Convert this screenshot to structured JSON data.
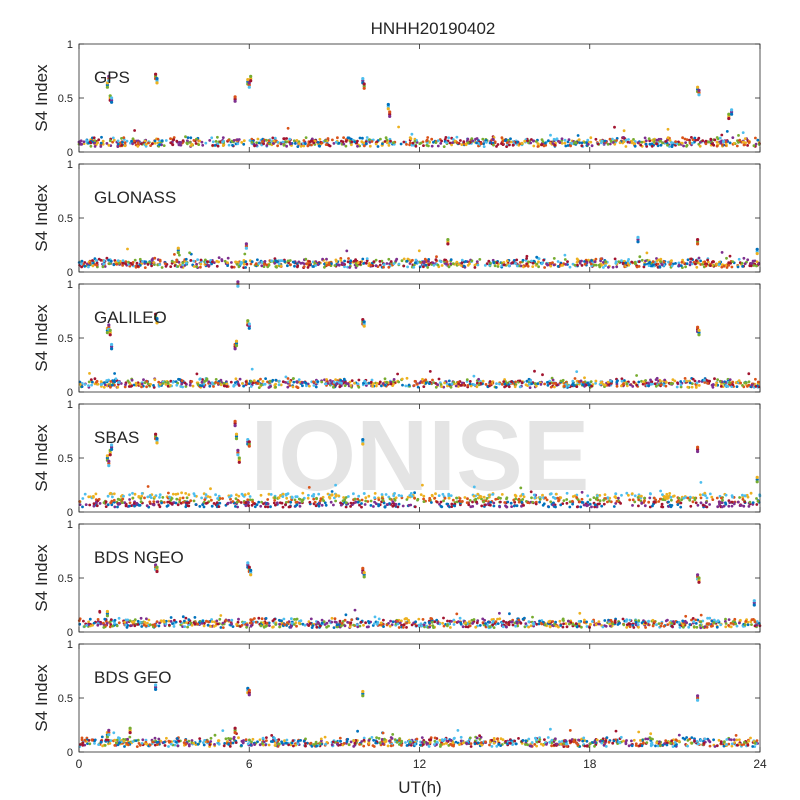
{
  "chart_data": {
    "type": "scatter",
    "title": "HNHH20190402",
    "xlabel": "UT(h)",
    "ylabel": "S4 Index",
    "xlim": [
      0,
      24
    ],
    "ylim": [
      0,
      1
    ],
    "x_ticks": [
      0,
      6,
      12,
      18,
      24
    ],
    "y_ticks": [
      0,
      0.5,
      1
    ],
    "y_tick_labels": [
      "0",
      "0.5",
      "1"
    ],
    "watermark": "IONISE",
    "series_colors": [
      "#0072BD",
      "#D95319",
      "#EDB120",
      "#7E2F8E",
      "#77AC30",
      "#4DBEEE",
      "#A2142F"
    ],
    "panels": [
      {
        "label": "GPS",
        "baseline": 0.08,
        "spikes": [
          [
            1.0,
            0.62
          ],
          [
            1.05,
            0.68
          ],
          [
            1.1,
            0.5
          ],
          [
            1.15,
            0.48
          ],
          [
            2.7,
            0.7
          ],
          [
            2.75,
            0.66
          ],
          [
            5.5,
            0.49
          ],
          [
            5.95,
            0.65
          ],
          [
            6.0,
            0.62
          ],
          [
            6.05,
            0.68
          ],
          [
            10.0,
            0.66
          ],
          [
            10.05,
            0.61
          ],
          [
            10.9,
            0.42
          ],
          [
            10.95,
            0.35
          ],
          [
            21.8,
            0.58
          ],
          [
            21.85,
            0.55
          ],
          [
            22.9,
            0.33
          ],
          [
            23.0,
            0.37
          ]
        ]
      },
      {
        "label": "GLONASS",
        "baseline": 0.07,
        "spikes": [
          [
            3.5,
            0.2
          ],
          [
            5.9,
            0.24
          ],
          [
            13.0,
            0.28
          ],
          [
            19.7,
            0.3
          ],
          [
            21.8,
            0.28
          ],
          [
            23.9,
            0.19
          ]
        ]
      },
      {
        "label": "GALILEO",
        "baseline": 0.07,
        "spikes": [
          [
            1.0,
            0.57
          ],
          [
            1.05,
            0.6
          ],
          [
            1.1,
            0.55
          ],
          [
            1.15,
            0.42
          ],
          [
            2.7,
            0.7
          ],
          [
            2.75,
            0.66
          ],
          [
            5.5,
            0.42
          ],
          [
            5.55,
            0.45
          ],
          [
            5.6,
            1.0
          ],
          [
            5.95,
            0.64
          ],
          [
            6.0,
            0.61
          ],
          [
            10.0,
            0.65
          ],
          [
            10.05,
            0.63
          ],
          [
            21.8,
            0.58
          ],
          [
            21.85,
            0.55
          ]
        ]
      },
      {
        "label": "SBAS",
        "baseline": 0.12,
        "spikes": [
          [
            1.0,
            0.5
          ],
          [
            1.05,
            0.45
          ],
          [
            1.1,
            0.55
          ],
          [
            1.15,
            0.6
          ],
          [
            2.7,
            0.7
          ],
          [
            2.75,
            0.66
          ],
          [
            5.5,
            0.82
          ],
          [
            5.55,
            0.7
          ],
          [
            5.6,
            0.55
          ],
          [
            5.65,
            0.48
          ],
          [
            5.95,
            0.65
          ],
          [
            6.0,
            0.63
          ],
          [
            10.0,
            0.65
          ],
          [
            21.8,
            0.58
          ],
          [
            23.9,
            0.3
          ]
        ]
      },
      {
        "label": "BDS NGEO",
        "baseline": 0.07,
        "spikes": [
          [
            1.0,
            0.17
          ],
          [
            2.7,
            0.6
          ],
          [
            2.75,
            0.58
          ],
          [
            5.95,
            0.62
          ],
          [
            6.0,
            0.58
          ],
          [
            6.05,
            0.55
          ],
          [
            10.0,
            0.57
          ],
          [
            10.05,
            0.53
          ],
          [
            21.8,
            0.51
          ],
          [
            21.85,
            0.48
          ],
          [
            23.8,
            0.27
          ]
        ]
      },
      {
        "label": "BDS GEO",
        "baseline": 0.08,
        "spikes": [
          [
            1.0,
            0.16
          ],
          [
            1.05,
            0.18
          ],
          [
            1.8,
            0.2
          ],
          [
            2.7,
            0.6
          ],
          [
            5.5,
            0.2
          ],
          [
            5.95,
            0.57
          ],
          [
            6.0,
            0.55
          ],
          [
            10.0,
            0.54
          ],
          [
            21.8,
            0.5
          ]
        ]
      }
    ]
  }
}
